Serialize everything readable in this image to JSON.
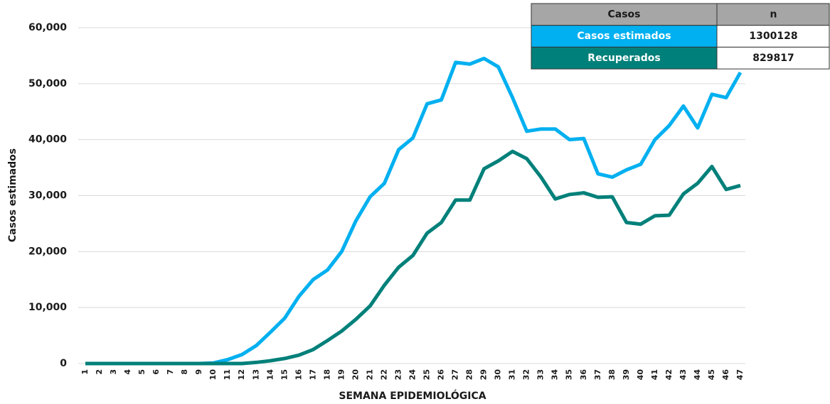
{
  "chart_data": {
    "type": "line",
    "y_label": "Casos estimados",
    "x_label": "SEMANA EPIDEMIOLÓGICA",
    "categories": [
      "1",
      "2",
      "3",
      "4",
      "5",
      "6",
      "7",
      "8",
      "9",
      "10",
      "11",
      "12",
      "13",
      "14",
      "15",
      "16",
      "17",
      "18",
      "19",
      "20",
      "21",
      "22",
      "23",
      "24",
      "25",
      "26",
      "27",
      "28",
      "29",
      "30",
      "31",
      "32",
      "33",
      "34",
      "35",
      "36",
      "37",
      "38",
      "39",
      "40",
      "41",
      "42",
      "43",
      "44",
      "45",
      "46",
      "47"
    ],
    "series": [
      {
        "name": "Casos estimados",
        "color": "#00b0f0",
        "values": [
          0,
          0,
          0,
          0,
          0,
          0,
          0,
          0,
          0,
          100,
          700,
          1600,
          3200,
          5600,
          8100,
          12000,
          15000,
          16700,
          20000,
          25500,
          29800,
          32200,
          38200,
          40300,
          46400,
          47100,
          53800,
          53500,
          54500,
          53000,
          47500,
          41500,
          41900,
          41900,
          40000,
          40200,
          33900,
          33300,
          34600,
          35600,
          40000,
          42500,
          46000,
          42100,
          48100,
          47500,
          52000
        ]
      },
      {
        "name": "Recuperados",
        "color": "#00807a",
        "values": [
          0,
          0,
          0,
          0,
          0,
          0,
          0,
          0,
          0,
          0,
          0,
          0,
          200,
          500,
          900,
          1500,
          2500,
          4100,
          5800,
          7900,
          10300,
          14000,
          17200,
          19300,
          23300,
          25200,
          29200,
          29200,
          34800,
          36200,
          37900,
          36600,
          33300,
          29400,
          30200,
          30500,
          29700,
          29800,
          25200,
          24900,
          26400,
          26500,
          30300,
          32200,
          35200,
          31100,
          31800
        ]
      }
    ],
    "ylim": [
      0,
      60000
    ],
    "yticks": [
      0,
      {
        "value": 10000,
        "label": "10,000"
      },
      {
        "value": 20000,
        "label": "20,000"
      },
      {
        "value": 30000,
        "label": "30,000"
      },
      {
        "value": 40000,
        "label": "40,000"
      },
      {
        "value": 50000,
        "label": "50,000"
      },
      {
        "value": 60000,
        "label": "60,000"
      }
    ],
    "grid": true,
    "summary_table": {
      "header": [
        "Casos",
        "n"
      ],
      "header_color": "#a6a6a6",
      "values": [
        1300128,
        829817
      ]
    }
  }
}
